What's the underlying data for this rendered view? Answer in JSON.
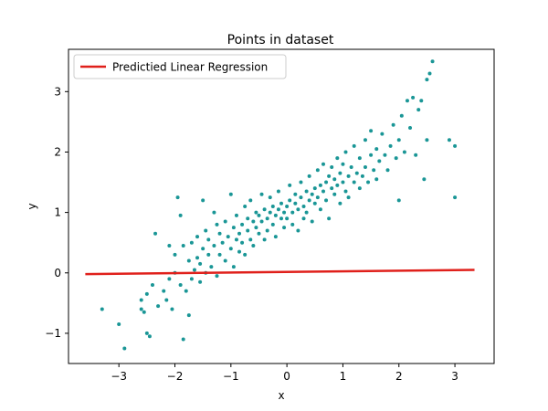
{
  "chart_data": {
    "type": "scatter",
    "title": "Points in dataset",
    "xlabel": "x",
    "ylabel": "y",
    "xlim": [
      -3.9,
      3.7
    ],
    "ylim": [
      -1.5,
      3.7
    ],
    "xticks": [
      -3,
      -2,
      -1,
      0,
      1,
      2,
      3
    ],
    "xtick_labels": [
      "−3",
      "−2",
      "−1",
      "0",
      "1",
      "2",
      "3"
    ],
    "yticks": [
      -1,
      0,
      1,
      2,
      3
    ],
    "ytick_labels": [
      "−1",
      "0",
      "1",
      "2",
      "3"
    ],
    "grid": false,
    "legend": {
      "position": "top-left",
      "entries": [
        "Predictied Linear Regression"
      ]
    },
    "colors": {
      "points": "#1a9696",
      "regression": "#e0201b"
    },
    "series": [
      {
        "kind": "scatter",
        "points": [
          [
            -3.3,
            -0.6
          ],
          [
            -3.0,
            -0.85
          ],
          [
            -2.9,
            -1.25
          ],
          [
            -2.6,
            -0.45
          ],
          [
            -2.6,
            -0.6
          ],
          [
            -2.55,
            -0.65
          ],
          [
            -2.5,
            -0.35
          ],
          [
            -2.5,
            -1.0
          ],
          [
            -2.45,
            -1.05
          ],
          [
            -2.4,
            -0.2
          ],
          [
            -2.35,
            0.65
          ],
          [
            -2.3,
            -0.55
          ],
          [
            -2.2,
            -0.3
          ],
          [
            -2.15,
            -0.45
          ],
          [
            -2.1,
            -0.1
          ],
          [
            -2.1,
            0.45
          ],
          [
            -2.05,
            -0.6
          ],
          [
            -2.0,
            0.0
          ],
          [
            -2.0,
            0.3
          ],
          [
            -1.95,
            1.25
          ],
          [
            -1.9,
            0.95
          ],
          [
            -1.9,
            -0.2
          ],
          [
            -1.85,
            -1.1
          ],
          [
            -1.85,
            0.45
          ],
          [
            -1.8,
            -0.3
          ],
          [
            -1.75,
            0.2
          ],
          [
            -1.75,
            -0.7
          ],
          [
            -1.7,
            0.5
          ],
          [
            -1.7,
            -0.1
          ],
          [
            -1.65,
            0.05
          ],
          [
            -1.6,
            0.6
          ],
          [
            -1.6,
            0.25
          ],
          [
            -1.55,
            0.15
          ],
          [
            -1.55,
            -0.15
          ],
          [
            -1.5,
            1.2
          ],
          [
            -1.5,
            0.4
          ],
          [
            -1.45,
            0.7
          ],
          [
            -1.45,
            0.0
          ],
          [
            -1.4,
            0.3
          ],
          [
            -1.4,
            0.55
          ],
          [
            -1.35,
            0.1
          ],
          [
            -1.3,
            1.0
          ],
          [
            -1.3,
            0.45
          ],
          [
            -1.25,
            0.8
          ],
          [
            -1.25,
            -0.05
          ],
          [
            -1.2,
            0.65
          ],
          [
            -1.2,
            0.3
          ],
          [
            -1.15,
            0.5
          ],
          [
            -1.1,
            0.2
          ],
          [
            -1.1,
            0.85
          ],
          [
            -1.05,
            0.6
          ],
          [
            -1.0,
            0.4
          ],
          [
            -1.0,
            1.3
          ],
          [
            -0.95,
            0.75
          ],
          [
            -0.95,
            0.1
          ],
          [
            -0.9,
            0.55
          ],
          [
            -0.9,
            0.95
          ],
          [
            -0.85,
            0.35
          ],
          [
            -0.85,
            0.65
          ],
          [
            -0.8,
            0.8
          ],
          [
            -0.8,
            0.5
          ],
          [
            -0.75,
            1.1
          ],
          [
            -0.75,
            0.3
          ],
          [
            -0.7,
            0.7
          ],
          [
            -0.7,
            0.9
          ],
          [
            -0.65,
            0.55
          ],
          [
            -0.65,
            1.2
          ],
          [
            -0.6,
            0.85
          ],
          [
            -0.6,
            0.45
          ],
          [
            -0.55,
            0.75
          ],
          [
            -0.55,
            1.0
          ],
          [
            -0.5,
            0.65
          ],
          [
            -0.5,
            0.95
          ],
          [
            -0.45,
            0.85
          ],
          [
            -0.45,
            1.3
          ],
          [
            -0.4,
            0.55
          ],
          [
            -0.4,
            1.05
          ],
          [
            -0.35,
            0.9
          ],
          [
            -0.35,
            0.7
          ],
          [
            -0.3,
            1.0
          ],
          [
            -0.3,
            1.25
          ],
          [
            -0.25,
            0.8
          ],
          [
            -0.25,
            1.1
          ],
          [
            -0.2,
            0.95
          ],
          [
            -0.2,
            0.6
          ],
          [
            -0.15,
            1.05
          ],
          [
            -0.15,
            1.35
          ],
          [
            -0.1,
            0.9
          ],
          [
            -0.1,
            1.15
          ],
          [
            -0.05,
            1.0
          ],
          [
            -0.05,
            0.75
          ],
          [
            0.0,
            1.1
          ],
          [
            0.0,
            0.9
          ],
          [
            0.05,
            1.2
          ],
          [
            0.05,
            1.45
          ],
          [
            0.1,
            1.0
          ],
          [
            0.1,
            0.8
          ],
          [
            0.15,
            1.15
          ],
          [
            0.15,
            1.3
          ],
          [
            0.2,
            1.05
          ],
          [
            0.2,
            0.7
          ],
          [
            0.25,
            1.25
          ],
          [
            0.25,
            1.5
          ],
          [
            0.3,
            1.1
          ],
          [
            0.3,
            0.9
          ],
          [
            0.35,
            1.35
          ],
          [
            0.35,
            1.0
          ],
          [
            0.4,
            1.2
          ],
          [
            0.4,
            1.6
          ],
          [
            0.45,
            1.3
          ],
          [
            0.45,
            0.85
          ],
          [
            0.5,
            1.4
          ],
          [
            0.5,
            1.15
          ],
          [
            0.55,
            1.7
          ],
          [
            0.55,
            1.25
          ],
          [
            0.6,
            1.45
          ],
          [
            0.6,
            1.05
          ],
          [
            0.65,
            1.35
          ],
          [
            0.65,
            1.8
          ],
          [
            0.7,
            1.5
          ],
          [
            0.7,
            1.2
          ],
          [
            0.75,
            1.6
          ],
          [
            0.75,
            0.9
          ],
          [
            0.8,
            1.4
          ],
          [
            0.8,
            1.75
          ],
          [
            0.85,
            1.3
          ],
          [
            0.85,
            1.55
          ],
          [
            0.9,
            1.9
          ],
          [
            0.9,
            1.45
          ],
          [
            0.95,
            1.65
          ],
          [
            0.95,
            1.15
          ],
          [
            1.0,
            1.5
          ],
          [
            1.0,
            1.8
          ],
          [
            1.05,
            1.35
          ],
          [
            1.05,
            2.0
          ],
          [
            1.1,
            1.6
          ],
          [
            1.1,
            1.25
          ],
          [
            1.15,
            1.75
          ],
          [
            1.2,
            1.5
          ],
          [
            1.2,
            2.1
          ],
          [
            1.25,
            1.65
          ],
          [
            1.3,
            1.4
          ],
          [
            1.3,
            1.9
          ],
          [
            1.35,
            1.6
          ],
          [
            1.4,
            2.2
          ],
          [
            1.4,
            1.75
          ],
          [
            1.45,
            1.5
          ],
          [
            1.5,
            1.95
          ],
          [
            1.5,
            2.35
          ],
          [
            1.55,
            1.7
          ],
          [
            1.6,
            2.05
          ],
          [
            1.6,
            1.55
          ],
          [
            1.65,
            1.85
          ],
          [
            1.7,
            2.3
          ],
          [
            1.75,
            1.95
          ],
          [
            1.8,
            1.7
          ],
          [
            1.85,
            2.1
          ],
          [
            1.9,
            2.45
          ],
          [
            1.95,
            1.9
          ],
          [
            2.0,
            2.2
          ],
          [
            2.0,
            1.2
          ],
          [
            2.05,
            2.6
          ],
          [
            2.1,
            2.0
          ],
          [
            2.15,
            2.85
          ],
          [
            2.2,
            2.4
          ],
          [
            2.25,
            2.9
          ],
          [
            2.3,
            1.95
          ],
          [
            2.35,
            2.7
          ],
          [
            2.4,
            2.85
          ],
          [
            2.45,
            1.55
          ],
          [
            2.5,
            3.2
          ],
          [
            2.5,
            2.2
          ],
          [
            2.55,
            3.3
          ],
          [
            2.6,
            3.5
          ],
          [
            2.9,
            2.2
          ],
          [
            3.0,
            2.1
          ],
          [
            3.0,
            1.25
          ]
        ]
      },
      {
        "kind": "line",
        "name": "Predictied Linear Regression",
        "points": [
          [
            -3.6,
            -0.02
          ],
          [
            3.35,
            0.05
          ]
        ]
      }
    ]
  }
}
